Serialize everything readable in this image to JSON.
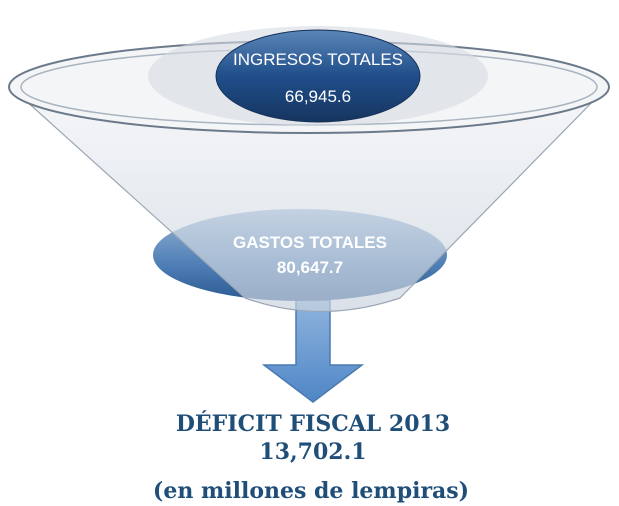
{
  "nodes": [
    {
      "label": "INGRESOS TOTALES",
      "value": "66,945.6"
    },
    {
      "label": "GASTOS TOTALES",
      "value": "80,647.7"
    }
  ],
  "result": {
    "label": "DÉFICIT FISCAL 2013",
    "value": "13,702.1",
    "note": "(en millones de lempiras)"
  }
}
